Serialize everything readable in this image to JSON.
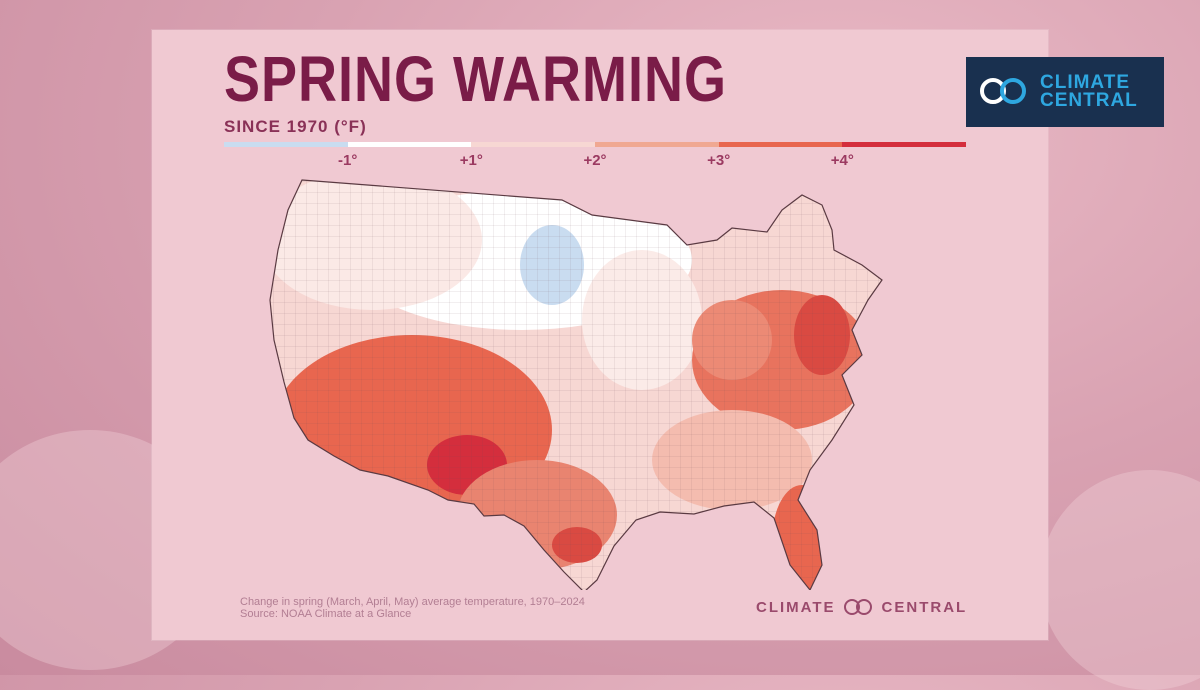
{
  "header": {
    "title": "SPRING WARMING",
    "subtitle": "SINCE 1970 (°F)"
  },
  "legend": {
    "colors": [
      "#c9dcf0",
      "#ffffff",
      "#f7d7d3",
      "#f0a892",
      "#e8664f",
      "#d42e3d"
    ],
    "labels": [
      {
        "text": "-1°",
        "value": -1
      },
      {
        "text": "+1°",
        "value": 1
      },
      {
        "text": "+2°",
        "value": 2
      },
      {
        "text": "+3°",
        "value": 3
      },
      {
        "text": "+4°",
        "value": 4
      }
    ]
  },
  "logo": {
    "line1": "CLIMATE",
    "line2": "CENTRAL",
    "ring_colors": [
      "#ffffff",
      "#2ea7e0"
    ],
    "background": "#19304f"
  },
  "map": {
    "region": "Contiguous United States (county level)",
    "icon": "us-county-map"
  },
  "caption": {
    "line1": "Change in spring (March, April, May) average temperature, 1970–2024",
    "line2": "Source: NOAA Climate at a Glance"
  },
  "footer": {
    "brand_left": "CLIMATE",
    "brand_right": "CENTRAL"
  }
}
